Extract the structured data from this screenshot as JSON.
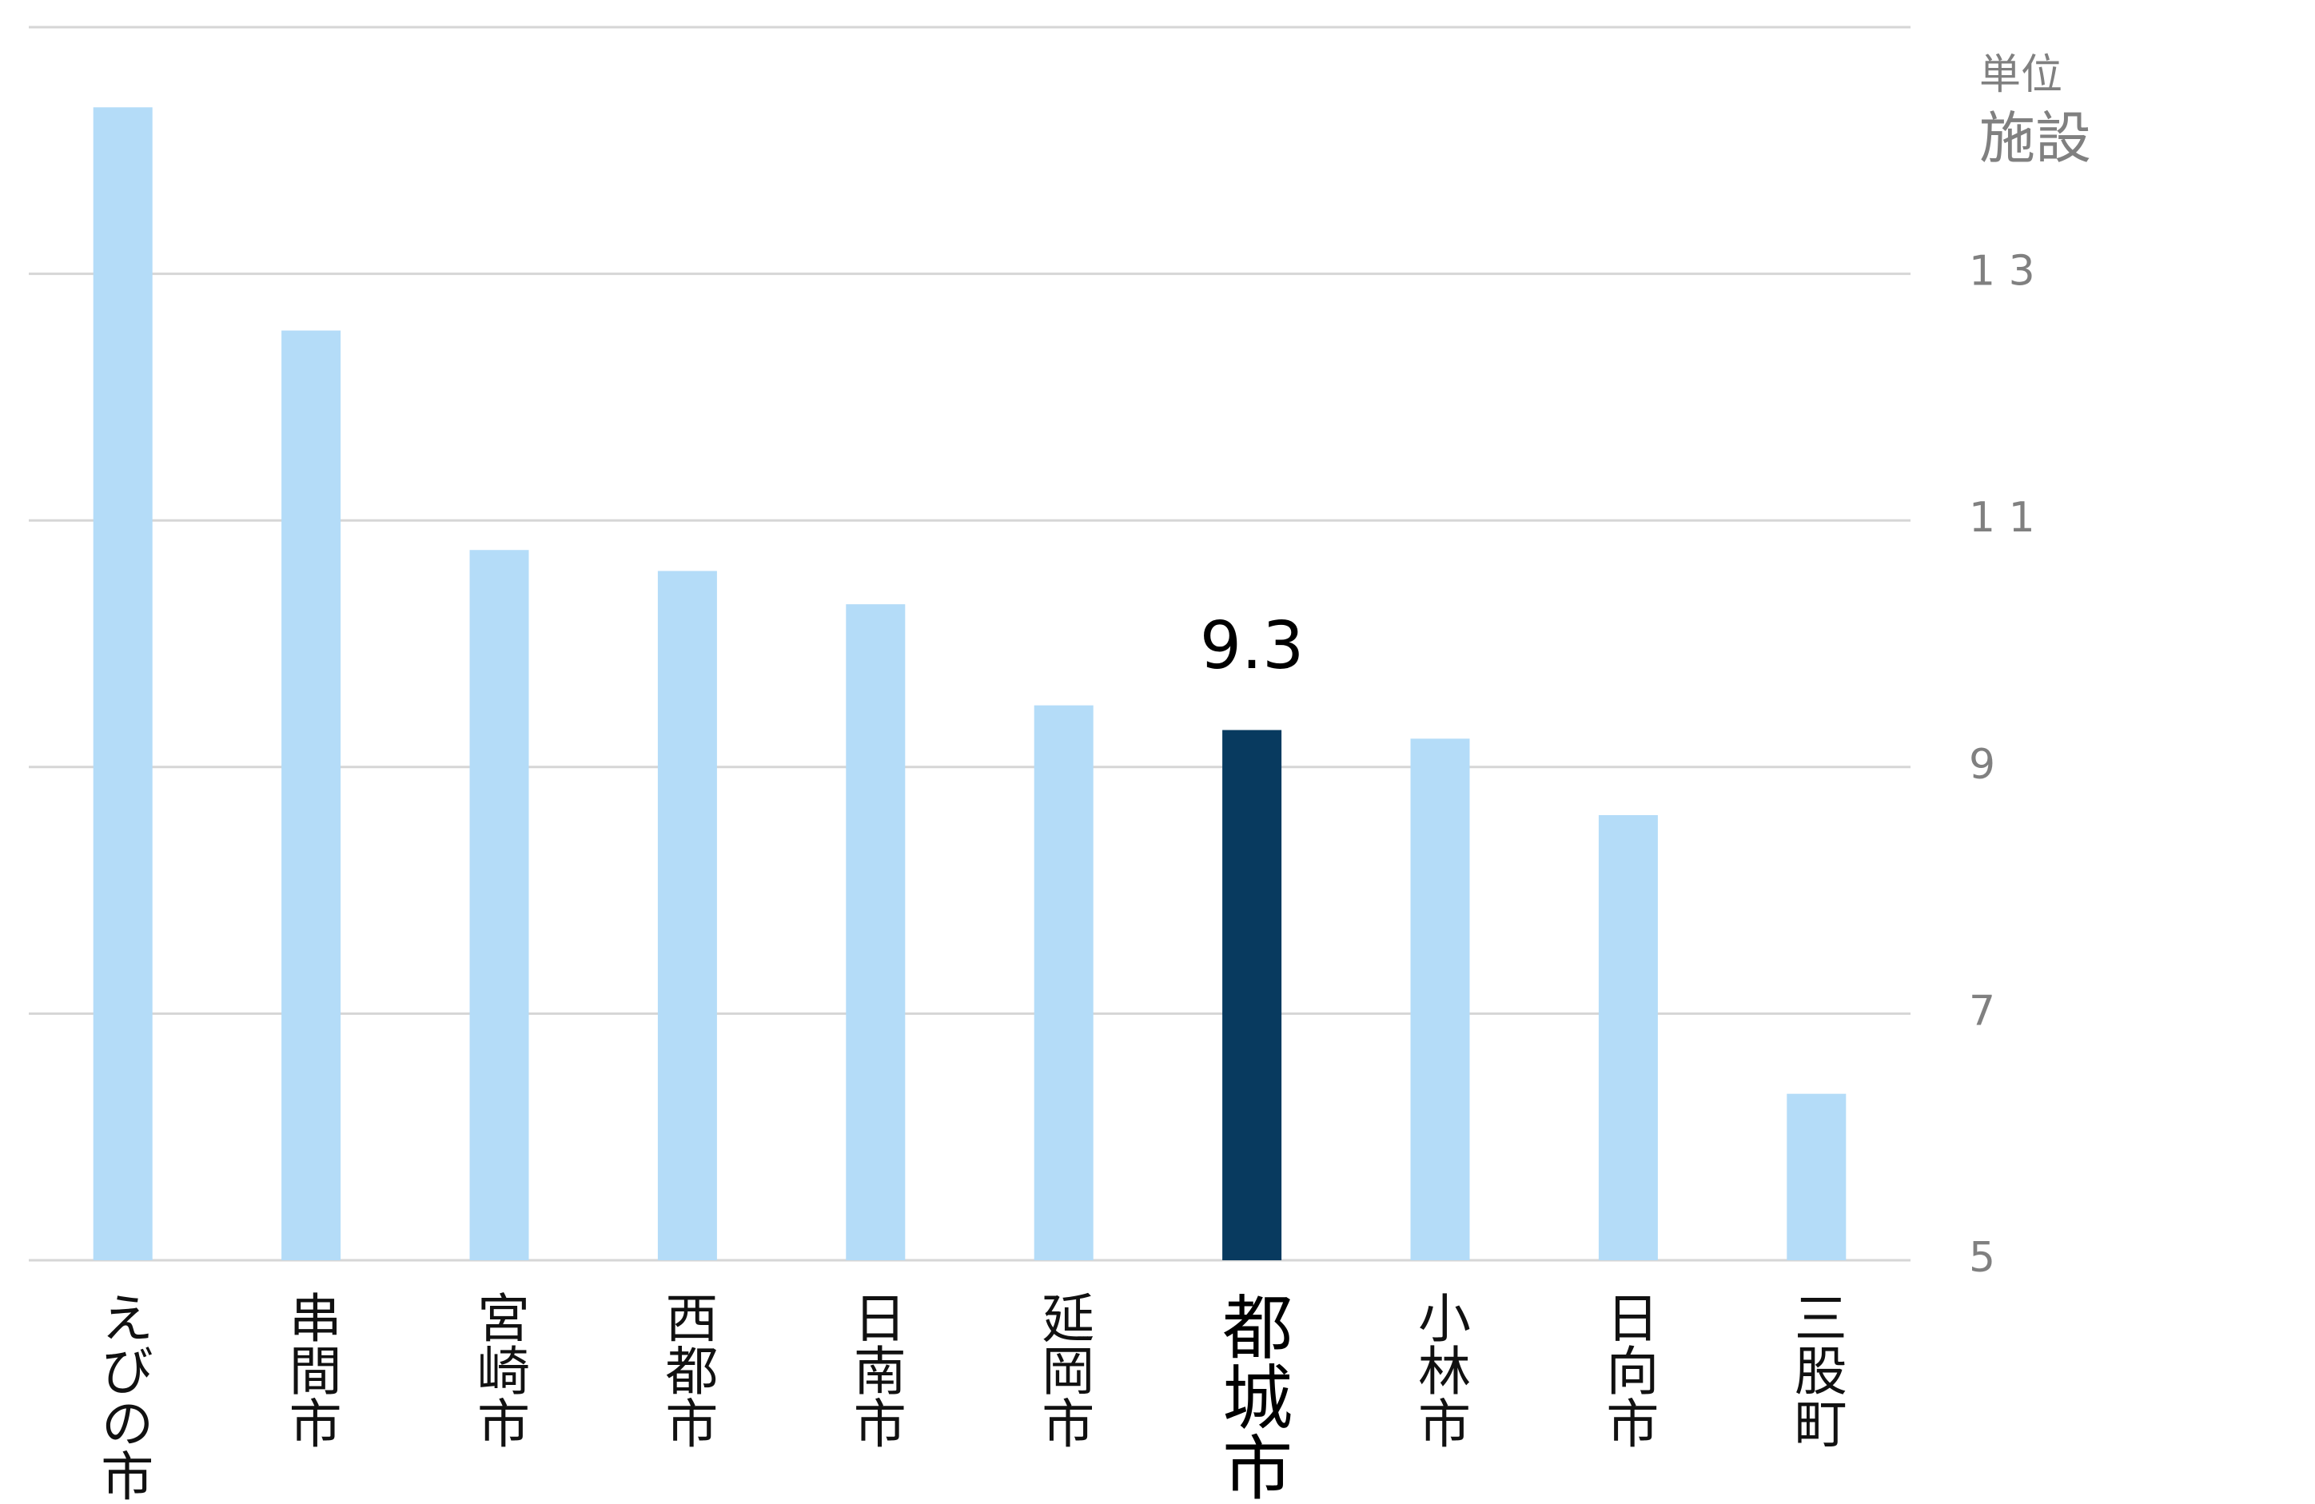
{
  "chart_data": {
    "type": "bar",
    "unit_label": "単位",
    "unit": "施設",
    "categories": [
      "えびの市",
      "串間市",
      "宮崎市",
      "西都市",
      "日南市",
      "延岡市",
      "都城市",
      "小林市",
      "日向市",
      "三股町"
    ],
    "values": [
      14.35,
      12.54,
      10.76,
      10.59,
      10.32,
      9.5,
      9.3,
      9.23,
      8.61,
      6.35
    ],
    "value_labels": [
      null,
      null,
      null,
      null,
      null,
      null,
      "9.3",
      null,
      null,
      null
    ],
    "colors": [
      "#b4dcf8",
      "#b4dcf8",
      "#b4dcf8",
      "#b4dcf8",
      "#b4dcf8",
      "#b4dcf8",
      "#083a5f",
      "#b4dcf8",
      "#b4dcf8",
      "#b4dcf8"
    ],
    "ylim": [
      5,
      15
    ],
    "yticks": [
      5,
      7,
      9,
      {
        "value": 11,
        "label": "1 1"
      },
      {
        "value": 13,
        "label": "1 3"
      }
    ],
    "grid": true
  }
}
